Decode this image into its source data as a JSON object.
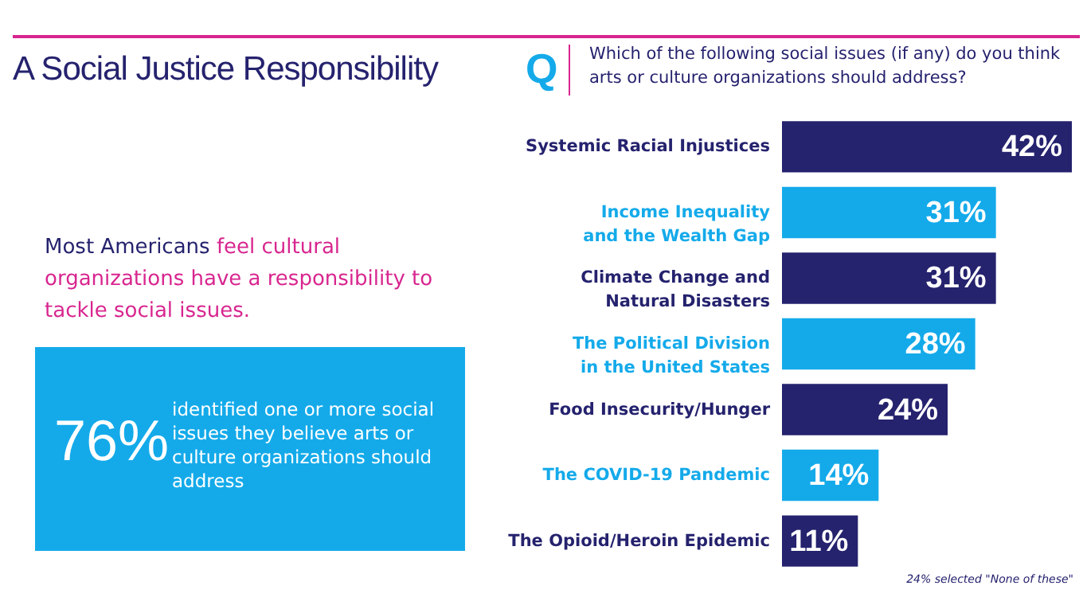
{
  "chart_data": {
    "type": "bar",
    "orientation": "horizontal",
    "title": "A Social Justice Responsibility",
    "subtitle": "Which of the following social issues (if any) do you think arts or culture organizations should address?",
    "categories": [
      "Systemic Racial Injustices",
      "Income Inequality and the Wealth Gap",
      "Climate Change and Natural Disasters",
      "The Political Division in the United States",
      "Food Insecurity/Hunger",
      "The COVID-19 Pandemic",
      "The Opioid/Heroin Epidemic"
    ],
    "values": [
      42,
      31,
      31,
      28,
      24,
      14,
      11
    ],
    "colors": [
      "#25226e",
      "#14aaea",
      "#25226e",
      "#14aaea",
      "#25226e",
      "#14aaea",
      "#25226e"
    ],
    "value_labels": [
      "42%",
      "31%",
      "31%",
      "28%",
      "24%",
      "14%",
      "11%"
    ],
    "annotations": [
      "Q",
      "Most Americans",
      "feel cultural organizations have a responsibility to tackle social issues.",
      "76%",
      "identified one or more social issues they believe arts or culture organizations should address",
      "24% selected \"None of these\""
    ]
  }
}
